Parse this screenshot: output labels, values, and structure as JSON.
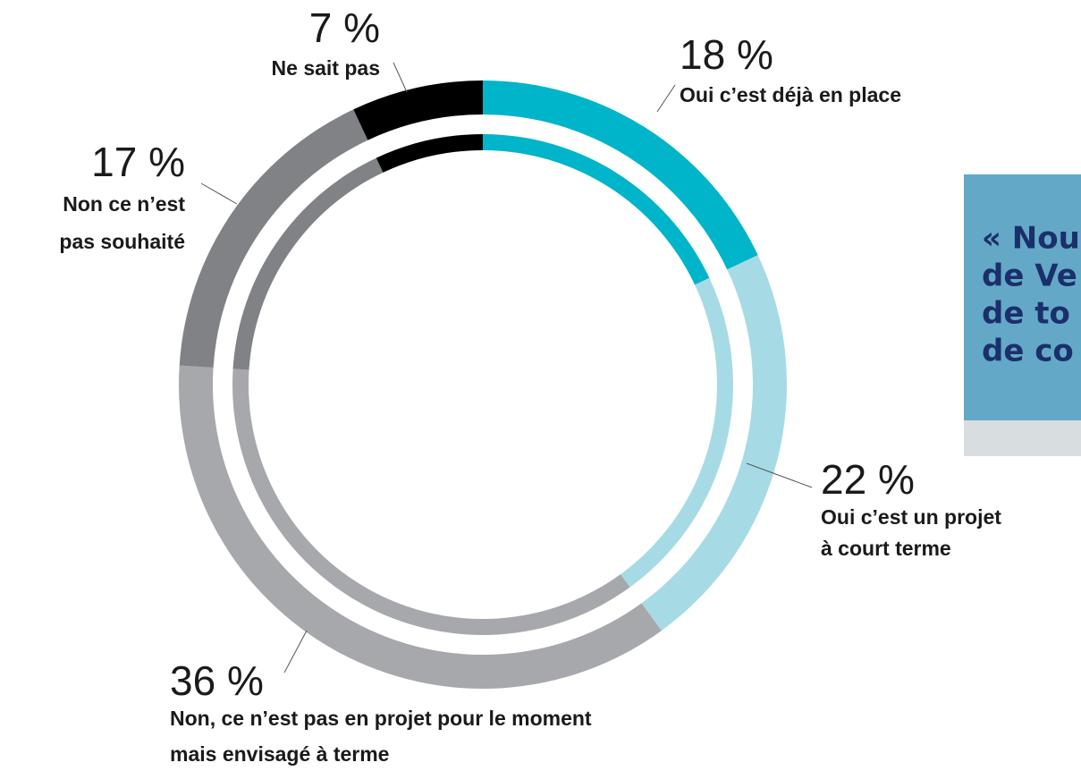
{
  "chart_data": {
    "type": "donut",
    "categories": [
      [
        "Oui c’est déjà en place"
      ],
      [
        "Oui c’est un projet",
        "à court terme"
      ],
      [
        "Non, ce n’est pas en projet pour le moment",
        "mais envisagé à terme"
      ],
      [
        "Non ce n’est",
        "pas souhaité"
      ],
      [
        "Ne sait pas"
      ]
    ],
    "values": [
      18,
      22,
      36,
      17,
      7
    ],
    "value_labels": [
      "18 %",
      "22 %",
      "36 %",
      "17 %",
      "7 %"
    ],
    "colors": [
      "#00b5c9",
      "#a6dbe5",
      "#a7a8ab",
      "#808285",
      "#000000"
    ]
  },
  "note": {
    "lines": [
      "« Nou",
      "de Ve",
      "de to",
      "de co"
    ]
  }
}
